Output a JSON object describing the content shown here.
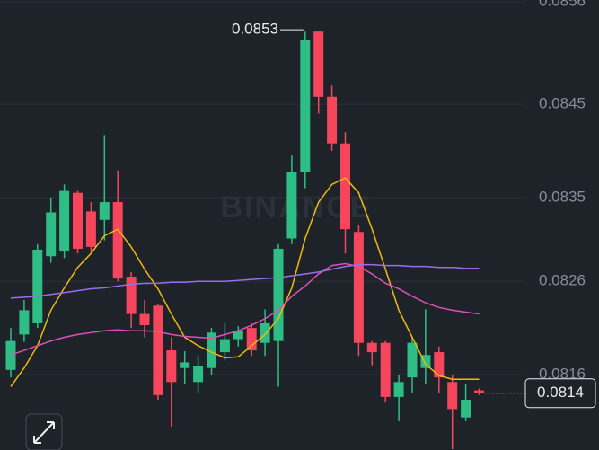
{
  "chart_data": {
    "type": "candlestick",
    "watermark": "BINANCE",
    "ylim": [
      0.0808,
      0.0856
    ],
    "yticks": [
      0.0816,
      0.0826,
      0.0835,
      0.0845,
      0.0856
    ],
    "grid": true,
    "up_color": "#2ebd85",
    "down_color": "#f6465d",
    "high_label": 0.0853,
    "last_price": 0.0814,
    "open": [
      0.08165,
      0.08203,
      0.08215,
      0.08287,
      0.08292,
      0.08355,
      0.08335,
      0.08326,
      0.08345,
      0.08265,
      0.08225,
      0.08234,
      0.08186,
      0.08167,
      0.08152,
      0.08167,
      0.08184,
      0.08198,
      0.0821,
      0.08194,
      0.08196,
      0.08306,
      0.08377,
      0.08528,
      0.08458,
      0.08408,
      0.08313,
      0.08194,
      0.08194,
      0.08136,
      0.08157,
      0.08167,
      0.08184,
      0.08152,
      0.08114,
      0.08143
    ],
    "high": [
      0.0821,
      0.0824,
      0.083,
      0.0835,
      0.08364,
      0.08357,
      0.08345,
      0.08417,
      0.08379,
      0.0827,
      0.0824,
      0.08236,
      0.082,
      0.08185,
      0.0818,
      0.0821,
      0.08215,
      0.08212,
      0.08215,
      0.0823,
      0.083,
      0.08395,
      0.08528,
      0.08528,
      0.0847,
      0.0842,
      0.0832,
      0.08196,
      0.08196,
      0.0816,
      0.082,
      0.0823,
      0.0819,
      0.0816,
      0.0815,
      0.08145
    ],
    "low": [
      0.08157,
      0.08195,
      0.0821,
      0.0828,
      0.08285,
      0.0829,
      0.0829,
      0.08304,
      0.0826,
      0.0821,
      0.082,
      0.08133,
      0.08104,
      0.0815,
      0.0814,
      0.0816,
      0.08175,
      0.0819,
      0.0818,
      0.0818,
      0.08147,
      0.083,
      0.0836,
      0.0844,
      0.084,
      0.0829,
      0.0818,
      0.0817,
      0.0813,
      0.0811,
      0.0814,
      0.0815,
      0.0814,
      0.0808,
      0.0811,
      0.08138
    ],
    "close": [
      0.08196,
      0.08229,
      0.08294,
      0.08334,
      0.08357,
      0.08295,
      0.08297,
      0.08345,
      0.08263,
      0.08225,
      0.08213,
      0.08138,
      0.08152,
      0.08173,
      0.08169,
      0.08205,
      0.08198,
      0.08207,
      0.08186,
      0.08215,
      0.08295,
      0.08377,
      0.08519,
      0.08458,
      0.08408,
      0.08316,
      0.08194,
      0.08184,
      0.08136,
      0.08152,
      0.08194,
      0.08181,
      0.08157,
      0.08123,
      0.08133,
      0.0814
    ],
    "series": [
      {
        "color": "#f0b90b",
        "values": [
          0.08147,
          0.08167,
          0.08191,
          0.08229,
          0.08253,
          0.08275,
          0.0829,
          0.08309,
          0.08316,
          0.08297,
          0.08273,
          0.08252,
          0.08225,
          0.082,
          0.08191,
          0.08184,
          0.08178,
          0.08179,
          0.08191,
          0.08203,
          0.0822,
          0.08253,
          0.08306,
          0.08345,
          0.08364,
          0.08371,
          0.08355,
          0.08316,
          0.08273,
          0.08229,
          0.082,
          0.08171,
          0.08159,
          0.08155,
          0.08155,
          0.08155
        ]
      },
      {
        "color": "#e04fb8",
        "values": [
          0.08181,
          0.08186,
          0.08191,
          0.08196,
          0.082,
          0.08203,
          0.08205,
          0.08207,
          0.08208,
          0.08207,
          0.08207,
          0.08206,
          0.08203,
          0.08201,
          0.082,
          0.08199,
          0.08203,
          0.08207,
          0.08213,
          0.0822,
          0.08229,
          0.08244,
          0.08255,
          0.08268,
          0.08277,
          0.08279,
          0.08276,
          0.08268,
          0.08258,
          0.08252,
          0.08244,
          0.08237,
          0.08232,
          0.08229,
          0.08227,
          0.08225
        ]
      },
      {
        "color": "#9b6ee8",
        "values": [
          0.08242,
          0.08243,
          0.08244,
          0.08246,
          0.08248,
          0.0825,
          0.08252,
          0.08253,
          0.08255,
          0.08257,
          0.08258,
          0.08258,
          0.08259,
          0.08259,
          0.0826,
          0.0826,
          0.0826,
          0.08261,
          0.08262,
          0.08263,
          0.08264,
          0.08266,
          0.08268,
          0.0827,
          0.08273,
          0.08276,
          0.08278,
          0.08278,
          0.08277,
          0.08277,
          0.08276,
          0.08276,
          0.08275,
          0.08275,
          0.08274,
          0.08274
        ]
      }
    ]
  }
}
